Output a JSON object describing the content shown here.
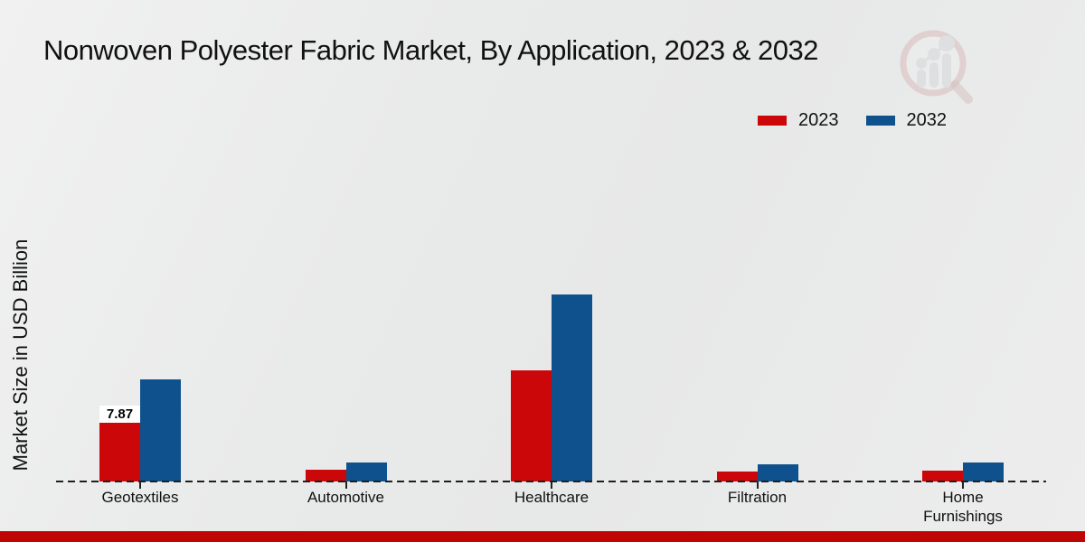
{
  "title": "Nonwoven Polyester Fabric Market, By Application, 2023 & 2032",
  "ylabel": "Market Size in USD Billion",
  "legend": {
    "items": [
      {
        "label": "2023",
        "color": "#cb0709"
      },
      {
        "label": "2032",
        "color": "#0f518c"
      }
    ]
  },
  "chart_data": {
    "type": "bar",
    "title": "Nonwoven Polyester Fabric Market, By Application, 2023 & 2032",
    "xlabel": "",
    "ylabel": "Market Size in USD Billion",
    "categories": [
      "Geotextiles",
      "Automotive",
      "Healthcare",
      "Filtration",
      "Home Furnishings"
    ],
    "series": [
      {
        "name": "2023",
        "color": "#cb0709",
        "values": [
          7.87,
          1.55,
          14.9,
          1.35,
          1.45
        ]
      },
      {
        "name": "2032",
        "color": "#0f518c",
        "values": [
          13.65,
          2.55,
          25.1,
          2.3,
          2.6
        ]
      }
    ],
    "value_labels": [
      {
        "series_index": 0,
        "category_index": 0,
        "text": "7.87"
      }
    ],
    "ylim": [
      0,
      27
    ],
    "grid": false,
    "axis_style": "dashed-baseline-only",
    "legend_position": "top-right"
  },
  "branding": {
    "logo_icon": "magnifier-growth-chart-watermark",
    "footer_color": "#c00505"
  }
}
